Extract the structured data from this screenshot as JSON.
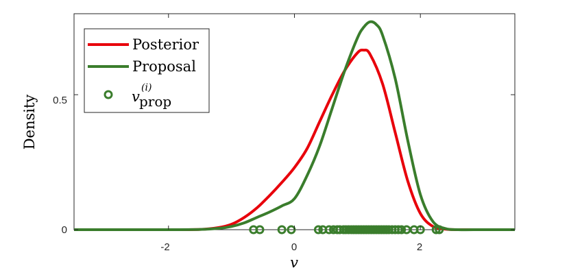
{
  "chart_data": {
    "type": "line",
    "xlabel": "v",
    "ylabel": "Density",
    "xlim": [
      -3.5,
      3.5
    ],
    "ylim": [
      0,
      0.8
    ],
    "xticks": [
      -2,
      0,
      2
    ],
    "xtick_labels": [
      "-2",
      "0",
      "2"
    ],
    "yticks": [
      0,
      0.5
    ],
    "ytick_labels": [
      "0",
      "0.5"
    ],
    "grid": false,
    "legend_position": "top-left",
    "colors": {
      "posterior": "#e8000b",
      "proposal": "#3a7d2c"
    },
    "series": [
      {
        "name": "Posterior",
        "x": [
          -3.5,
          -2.5,
          -2.0,
          -1.5,
          -1.2,
          -1.0,
          -0.8,
          -0.6,
          -0.4,
          -0.2,
          0.0,
          0.2,
          0.4,
          0.6,
          0.8,
          1.0,
          1.1,
          1.2,
          1.4,
          1.6,
          1.8,
          2.0,
          2.2,
          2.4,
          2.6,
          3.0,
          3.5
        ],
        "y": [
          0,
          0,
          0,
          0.001,
          0.008,
          0.02,
          0.045,
          0.08,
          0.125,
          0.175,
          0.23,
          0.3,
          0.4,
          0.5,
          0.59,
          0.655,
          0.665,
          0.65,
          0.54,
          0.36,
          0.18,
          0.06,
          0.012,
          0.002,
          0,
          0,
          0
        ]
      },
      {
        "name": "Proposal",
        "x": [
          -3.5,
          -2.5,
          -2.0,
          -1.5,
          -1.2,
          -1.0,
          -0.8,
          -0.6,
          -0.4,
          -0.2,
          0.0,
          0.2,
          0.4,
          0.6,
          0.8,
          1.0,
          1.1,
          1.2,
          1.3,
          1.4,
          1.6,
          1.8,
          2.0,
          2.2,
          2.4,
          2.6,
          3.0,
          3.5
        ],
        "y": [
          0,
          0,
          0,
          0.001,
          0.005,
          0.012,
          0.025,
          0.045,
          0.065,
          0.088,
          0.115,
          0.2,
          0.31,
          0.45,
          0.59,
          0.71,
          0.75,
          0.77,
          0.76,
          0.72,
          0.56,
          0.33,
          0.13,
          0.03,
          0.004,
          0,
          0,
          0
        ]
      },
      {
        "name": "v_prop^(i)",
        "legend_main": "v",
        "legend_sub": "prop",
        "legend_sup": "(i)",
        "marker": "circle-open",
        "y_value": 0,
        "x": [
          -0.65,
          -0.55,
          -0.2,
          -0.05,
          0.38,
          0.45,
          0.55,
          0.62,
          0.68,
          0.72,
          0.78,
          0.82,
          0.86,
          0.9,
          0.94,
          0.98,
          1.02,
          1.06,
          1.1,
          1.14,
          1.18,
          1.22,
          1.26,
          1.3,
          1.34,
          1.38,
          1.42,
          1.46,
          1.5,
          1.55,
          1.6,
          1.65,
          1.7,
          1.78,
          1.9,
          2.0,
          2.25,
          2.3
        ]
      }
    ]
  }
}
